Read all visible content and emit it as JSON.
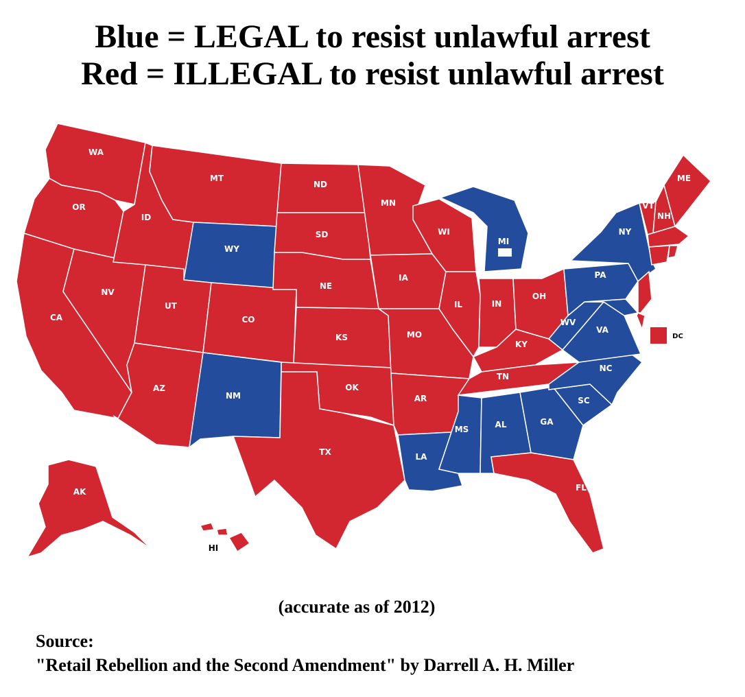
{
  "title": {
    "line1": "Blue = LEGAL to resist unlawful arrest",
    "line2": "Red = ILLEGAL to resist unlawful arrest"
  },
  "colors": {
    "legal": "#234c9c",
    "illegal": "#d22630"
  },
  "states": {
    "WA": "illegal",
    "OR": "illegal",
    "CA": "illegal",
    "NV": "illegal",
    "ID": "illegal",
    "MT": "illegal",
    "WY": "legal",
    "UT": "illegal",
    "AZ": "illegal",
    "CO": "illegal",
    "NM": "legal",
    "ND": "illegal",
    "SD": "illegal",
    "NE": "illegal",
    "KS": "illegal",
    "OK": "illegal",
    "TX": "illegal",
    "MN": "illegal",
    "IA": "illegal",
    "MO": "illegal",
    "AR": "illegal",
    "LA": "legal",
    "WI": "illegal",
    "IL": "illegal",
    "MI": "legal",
    "IN": "illegal",
    "OH": "illegal",
    "KY": "illegal",
    "TN": "illegal",
    "MS": "legal",
    "AL": "legal",
    "GA": "legal",
    "FL": "illegal",
    "SC": "legal",
    "NC": "legal",
    "VA": "legal",
    "WV": "legal",
    "PA": "legal",
    "NY": "legal",
    "ME": "illegal",
    "VT": "illegal",
    "NH": "illegal",
    "MA": "illegal",
    "RI": "illegal",
    "CT": "illegal",
    "NJ": "illegal",
    "DE": "illegal",
    "MD": "legal",
    "DC": "illegal",
    "AK": "illegal",
    "HI": "illegal"
  },
  "labels": {
    "WA": "WA",
    "OR": "OR",
    "CA": "CA",
    "NV": "NV",
    "ID": "ID",
    "MT": "MT",
    "WY": "WY",
    "UT": "UT",
    "AZ": "AZ",
    "CO": "CO",
    "NM": "NM",
    "ND": "ND",
    "SD": "SD",
    "NE": "NE",
    "KS": "KS",
    "OK": "OK",
    "TX": "TX",
    "MN": "MN",
    "IA": "IA",
    "MO": "MO",
    "AR": "AR",
    "LA": "LA",
    "WI": "WI",
    "IL": "IL",
    "MI": "MI",
    "IN": "IN",
    "OH": "OH",
    "KY": "KY",
    "TN": "TN",
    "MS": "MS",
    "AL": "AL",
    "GA": "GA",
    "FL": "FL",
    "SC": "SC",
    "NC": "NC",
    "VA": "VA",
    "WV": "WV",
    "PA": "PA",
    "NY": "NY",
    "ME": "ME",
    "VT": "VT",
    "NH": "NH",
    "DC": "DC",
    "AK": "AK",
    "HI": "HI"
  },
  "note": "(accurate as of 2012)",
  "source": {
    "label": "Source:",
    "citation": "\"Retail Rebellion and the Second Amendment\" by Darrell A. H. Miller"
  }
}
